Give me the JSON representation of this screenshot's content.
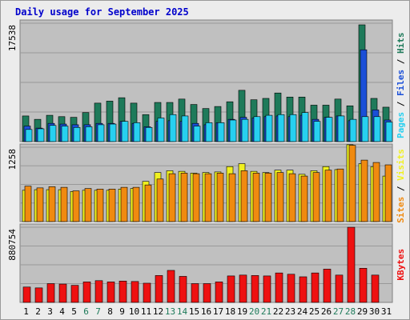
{
  "title": "Daily usage for September 2025",
  "colors": {
    "plot_bg": "#c0c0c0",
    "grid": "#999999",
    "hits": "#1e7a5a",
    "files": "#1a4fd8",
    "pages": "#27d0f0",
    "visits": "#f0f020",
    "sites": "#f08a10",
    "kbytes": "#ee1111",
    "weekday_label": "#000000",
    "weekend_label": "#1e7a5a"
  },
  "chart_data": [
    {
      "type": "bar",
      "axis_max_label": "17538",
      "ymax": 17538,
      "right_labels": [
        {
          "text": "Pages",
          "color": "#27d0f0"
        },
        {
          "text": " / ",
          "color": "#000000"
        },
        {
          "text": "Files",
          "color": "#1a4fd8"
        },
        {
          "text": " / ",
          "color": "#000000"
        },
        {
          "text": "Hits",
          "color": "#1e7a5a"
        }
      ],
      "series": [
        {
          "name": "Hits",
          "values": [
            3800,
            3300,
            3900,
            3700,
            3600,
            4300,
            5700,
            6000,
            6500,
            5700,
            4000,
            5800,
            5800,
            6300,
            5500,
            4900,
            5200,
            5900,
            7600,
            6200,
            6400,
            7200,
            6600,
            6600,
            5400,
            5400,
            6300,
            5300,
            17300,
            6400,
            5100
          ]
        },
        {
          "name": "Files",
          "values": [
            2300,
            2000,
            2700,
            2600,
            2500,
            2500,
            2700,
            2700,
            3000,
            2700,
            2200,
            3000,
            3100,
            3000,
            2700,
            2500,
            2800,
            3300,
            3600,
            3500,
            3700,
            3800,
            3700,
            3900,
            3300,
            3600,
            3800,
            3100,
            13600,
            4700,
            3200
          ]
        },
        {
          "name": "Pages",
          "values": [
            1800,
            1900,
            2400,
            2300,
            2100,
            2200,
            2500,
            2600,
            3000,
            2800,
            2100,
            3500,
            4000,
            3800,
            2300,
            2800,
            2800,
            3200,
            3300,
            3700,
            3900,
            4000,
            4000,
            4300,
            3000,
            3600,
            3800,
            3300,
            3700,
            3700,
            2900
          ]
        }
      ]
    },
    {
      "type": "bar",
      "axis_max_label": "1258",
      "ymax": 1258,
      "right_labels": [
        {
          "text": "Sites",
          "color": "#f08a10"
        },
        {
          "text": " / ",
          "color": "#000000"
        },
        {
          "text": "Visits",
          "color": "#f0f020"
        }
      ],
      "series": [
        {
          "name": "Visits",
          "values": [
            530,
            540,
            540,
            540,
            510,
            530,
            530,
            530,
            550,
            560,
            680,
            830,
            860,
            850,
            820,
            830,
            840,
            930,
            980,
            850,
            830,
            870,
            870,
            800,
            860,
            930,
            880,
            1300,
            980,
            930,
            770
          ]
        },
        {
          "name": "Sites",
          "values": [
            600,
            570,
            590,
            580,
            520,
            560,
            550,
            550,
            580,
            580,
            620,
            720,
            810,
            820,
            810,
            810,
            820,
            810,
            860,
            820,
            820,
            830,
            810,
            770,
            830,
            870,
            890,
            1290,
            1040,
            1000,
            960
          ]
        }
      ]
    },
    {
      "type": "bar",
      "axis_max_label": "880754",
      "ymax": 880754,
      "right_labels": [
        {
          "text": "KBytes",
          "color": "#ee1111"
        }
      ],
      "series": [
        {
          "name": "KBytes",
          "values": [
            180000,
            170000,
            220000,
            215000,
            200000,
            240000,
            255000,
            240000,
            250000,
            245000,
            225000,
            315000,
            375000,
            305000,
            220000,
            220000,
            240000,
            310000,
            320000,
            315000,
            310000,
            345000,
            330000,
            300000,
            345000,
            390000,
            320000,
            880000,
            400000,
            320000,
            0
          ]
        }
      ]
    }
  ],
  "x_labels": [
    "1",
    "2",
    "3",
    "4",
    "5",
    "6",
    "7",
    "8",
    "9",
    "10",
    "11",
    "12",
    "13",
    "14",
    "15",
    "16",
    "17",
    "18",
    "19",
    "20",
    "21",
    "22",
    "23",
    "24",
    "25",
    "26",
    "27",
    "28",
    "29",
    "30",
    "31"
  ],
  "weekend_days": [
    "6",
    "7",
    "13",
    "14",
    "20",
    "21",
    "27",
    "28"
  ]
}
